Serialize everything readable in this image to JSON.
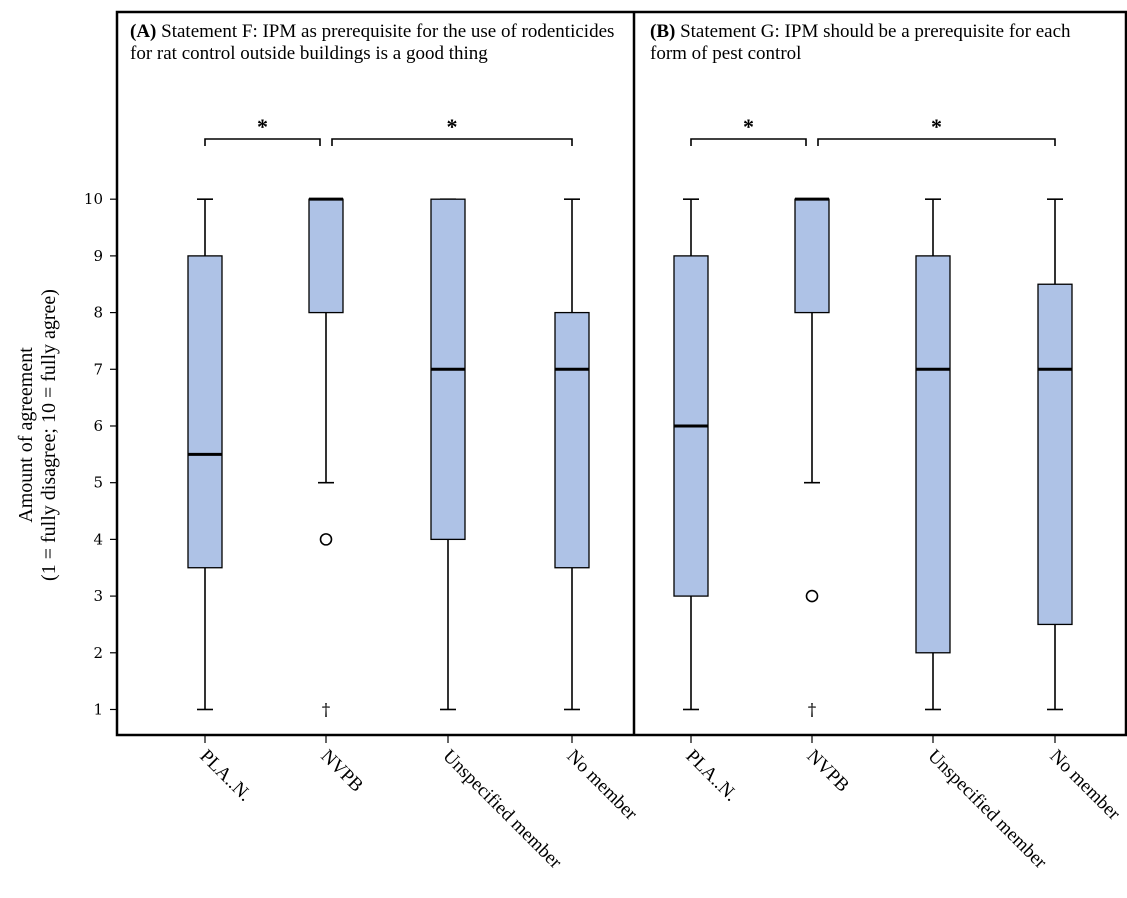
{
  "chart_data": {
    "type": "boxplot",
    "ylabel_line1": "Amount of agreement",
    "ylabel_line2": "(1 = fully disagree; 10 = fully agree)",
    "ylim": [
      0.55,
      10.55
    ],
    "yticks": [
      1,
      2,
      3,
      4,
      5,
      6,
      7,
      8,
      9,
      10
    ],
    "categories": [
      "PLA..N.",
      "NVPB",
      "Unspecified member",
      "No member"
    ],
    "box_color": "#aec2e6",
    "significance_marker": "*",
    "panels": [
      {
        "label": "(A)",
        "title": "Statement F: IPM as prerequisite for the use of rodenticides for rat control outside buildings is a good thing",
        "boxes": [
          {
            "category": "PLA..N.",
            "min": 1,
            "q1": 3.5,
            "median": 5.5,
            "q3": 9,
            "max": 10,
            "outliers": [],
            "extremes": []
          },
          {
            "category": "NVPB",
            "min": 5,
            "q1": 8,
            "median": 10,
            "q3": 10,
            "max": 10,
            "outliers": [
              4
            ],
            "extremes": [
              1
            ]
          },
          {
            "category": "Unspecified member",
            "min": 1,
            "q1": 4,
            "median": 7,
            "q3": 10,
            "max": 10,
            "outliers": [],
            "extremes": []
          },
          {
            "category": "No member",
            "min": 1,
            "q1": 3.5,
            "median": 7,
            "q3": 8,
            "max": 10,
            "outliers": [],
            "extremes": []
          }
        ],
        "significance": [
          {
            "from": "PLA..N.",
            "to": "NVPB"
          },
          {
            "from": "NVPB",
            "to": "No member"
          }
        ]
      },
      {
        "label": "(B)",
        "title": "Statement G: IPM should be a prerequisite for each form of pest control",
        "boxes": [
          {
            "category": "PLA..N.",
            "min": 1,
            "q1": 3,
            "median": 6,
            "q3": 9,
            "max": 10,
            "outliers": [],
            "extremes": []
          },
          {
            "category": "NVPB",
            "min": 5,
            "q1": 8,
            "median": 10,
            "q3": 10,
            "max": 10,
            "outliers": [
              3
            ],
            "extremes": [
              1
            ]
          },
          {
            "category": "Unspecified member",
            "min": 1,
            "q1": 2,
            "median": 7,
            "q3": 9,
            "max": 10,
            "outliers": [],
            "extremes": []
          },
          {
            "category": "No member",
            "min": 1,
            "q1": 2.5,
            "median": 7,
            "q3": 8.5,
            "max": 10,
            "outliers": [],
            "extremes": []
          }
        ],
        "significance": [
          {
            "from": "PLA..N.",
            "to": "NVPB"
          },
          {
            "from": "NVPB",
            "to": "No member"
          }
        ]
      }
    ]
  }
}
